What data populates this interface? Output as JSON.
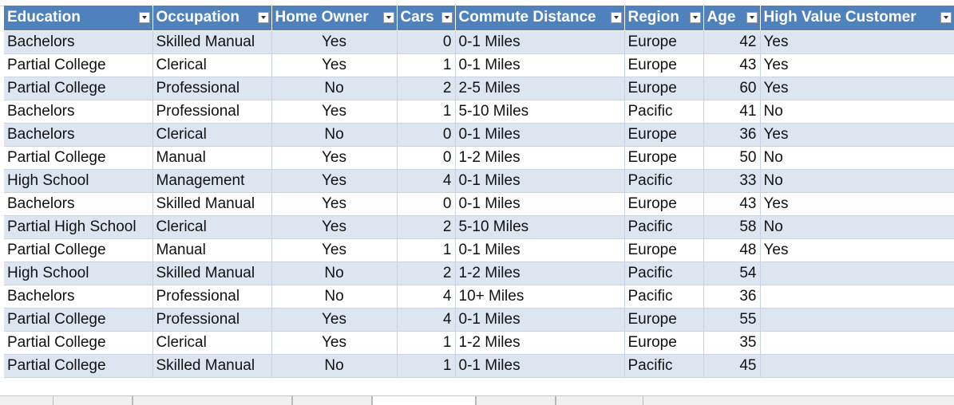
{
  "headers": [
    "Education",
    "Occupation",
    "Home Owner",
    "Cars",
    "Commute Distance",
    "Region",
    "Age",
    "High Value Customer"
  ],
  "rows": [
    [
      "Bachelors",
      "Skilled Manual",
      "Yes",
      "0",
      "0-1 Miles",
      "Europe",
      "42",
      "Yes"
    ],
    [
      "Partial College",
      "Clerical",
      "Yes",
      "1",
      "0-1 Miles",
      "Europe",
      "43",
      "Yes"
    ],
    [
      "Partial College",
      "Professional",
      "No",
      "2",
      "2-5 Miles",
      "Europe",
      "60",
      "Yes"
    ],
    [
      "Bachelors",
      "Professional",
      "Yes",
      "1",
      "5-10 Miles",
      "Pacific",
      "41",
      "No"
    ],
    [
      "Bachelors",
      "Clerical",
      "No",
      "0",
      "0-1 Miles",
      "Europe",
      "36",
      "Yes"
    ],
    [
      "Partial College",
      "Manual",
      "Yes",
      "0",
      "1-2 Miles",
      "Europe",
      "50",
      "No"
    ],
    [
      "High School",
      "Management",
      "Yes",
      "4",
      "0-1 Miles",
      "Pacific",
      "33",
      "No"
    ],
    [
      "Bachelors",
      "Skilled Manual",
      "Yes",
      "0",
      "0-1 Miles",
      "Europe",
      "43",
      "Yes"
    ],
    [
      "Partial High School",
      "Clerical",
      "Yes",
      "2",
      "5-10 Miles",
      "Pacific",
      "58",
      "No"
    ],
    [
      "Partial College",
      "Manual",
      "Yes",
      "1",
      "0-1 Miles",
      "Europe",
      "48",
      "Yes"
    ],
    [
      "High School",
      "Skilled Manual",
      "No",
      "2",
      "1-2 Miles",
      "Pacific",
      "54",
      ""
    ],
    [
      "Bachelors",
      "Professional",
      "No",
      "4",
      "10+ Miles",
      "Pacific",
      "36",
      ""
    ],
    [
      "Partial College",
      "Professional",
      "Yes",
      "4",
      "0-1 Miles",
      "Europe",
      "55",
      ""
    ],
    [
      "Partial College",
      "Clerical",
      "Yes",
      "1",
      "1-2 Miles",
      "Europe",
      "35",
      ""
    ],
    [
      "Partial College",
      "Skilled Manual",
      "No",
      "1",
      "0-1 Miles",
      "Pacific",
      "45",
      ""
    ]
  ],
  "colors": {
    "header_bg": "#4f81bd",
    "band_row": "#dce6f1",
    "grid_line": "#c9d3e3"
  },
  "icons": {
    "filter_dropdown": "chevron-down-icon"
  }
}
